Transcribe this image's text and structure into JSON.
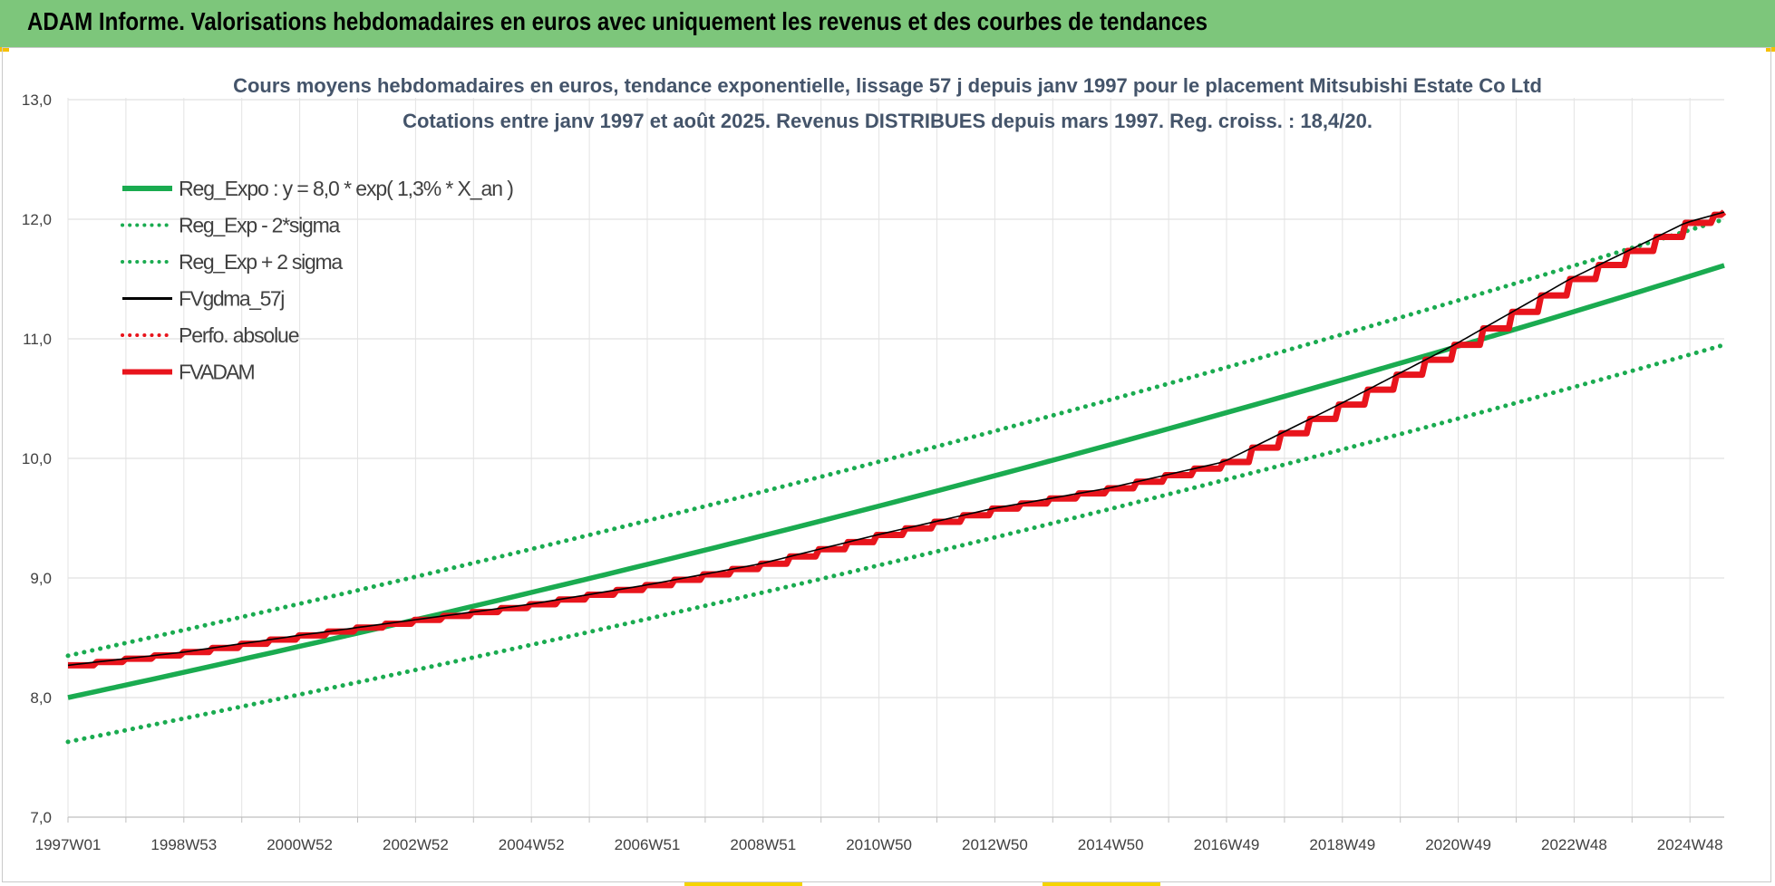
{
  "banner": {
    "title": "ADAM Informe. Valorisations hebdomadaires en euros avec uniquement les revenus et des courbes de tendances"
  },
  "colors": {
    "banner_bg": "#7dc67b",
    "trend_green": "#1aab50",
    "perf_red": "#e8141c",
    "fv_black": "#000000",
    "grid": "#d9d9d9",
    "axis_text": "#404040",
    "title_text": "#44546a"
  },
  "chart_data": {
    "type": "line",
    "title_line1": "Cours moyens hebdomadaires en euros, tendance exponentielle, lissage 57 j depuis janv 1997 pour le placement Mitsubishi Estate Co Ltd",
    "title_line2": "Cotations entre janv 1997 et août 2025. Revenus DISTRIBUES depuis mars 1997. Reg. croiss. : 18,4/20.",
    "xlabel": "",
    "ylabel": "",
    "x_range_years": [
      1997.0,
      2025.67
    ],
    "ylim": [
      7.0,
      13.0
    ],
    "y_ticks": [
      "7,0",
      "8,0",
      "9,0",
      "10,0",
      "11,0",
      "12,0",
      "13,0"
    ],
    "x_tick_labels": [
      "1997W01",
      "1998W53",
      "2000W52",
      "2002W52",
      "2004W52",
      "2006W51",
      "2008W51",
      "2010W50",
      "2012W50",
      "2014W50",
      "2016W49",
      "2018W49",
      "2020W49",
      "2022W48",
      "2024W48"
    ],
    "grid": true,
    "legend_position": "top-left",
    "regression": {
      "a": 8.0,
      "rate": 0.013
    },
    "series": [
      {
        "name": "Reg_Expo : y = 8,0 * exp( 1,3% *  X_an )",
        "style": "solid-thick",
        "color": "#1aab50",
        "points": [
          [
            1997.0,
            8.0
          ],
          [
            2025.67,
            11.45
          ]
        ]
      },
      {
        "name": "Reg_Exp - 2*sigma",
        "style": "dotted",
        "color": "#1aab50",
        "points": [
          [
            1997.0,
            7.63
          ],
          [
            2025.67,
            10.95
          ]
        ]
      },
      {
        "name": "Reg_Exp + 2 sigma",
        "style": "dotted",
        "color": "#1aab50",
        "points": [
          [
            1997.0,
            8.35
          ],
          [
            2025.67,
            12.0
          ]
        ]
      },
      {
        "name": "FVgdma_57j",
        "style": "solid-thin",
        "color": "#000000",
        "points": [
          [
            1997.0,
            8.27
          ],
          [
            1999.0,
            8.38
          ],
          [
            2001.0,
            8.52
          ],
          [
            2003.0,
            8.65
          ],
          [
            2005.0,
            8.78
          ],
          [
            2007.0,
            8.94
          ],
          [
            2009.0,
            9.12
          ],
          [
            2011.0,
            9.36
          ],
          [
            2013.0,
            9.58
          ],
          [
            2015.0,
            9.75
          ],
          [
            2017.0,
            9.97
          ],
          [
            2019.0,
            10.45
          ],
          [
            2021.0,
            10.95
          ],
          [
            2023.0,
            11.5
          ],
          [
            2025.0,
            11.97
          ],
          [
            2025.67,
            12.06
          ]
        ]
      },
      {
        "name": "Perfo. absolue",
        "style": "dotted",
        "color": "#e8141c",
        "points": []
      },
      {
        "name": "FVADAM",
        "style": "solid-thick-steps",
        "color": "#e8141c",
        "points": [
          [
            1997.0,
            8.27
          ],
          [
            1999.0,
            8.38
          ],
          [
            2001.0,
            8.52
          ],
          [
            2003.0,
            8.65
          ],
          [
            2005.0,
            8.78
          ],
          [
            2007.0,
            8.94
          ],
          [
            2009.0,
            9.12
          ],
          [
            2011.0,
            9.36
          ],
          [
            2013.0,
            9.58
          ],
          [
            2015.0,
            9.75
          ],
          [
            2017.0,
            9.97
          ],
          [
            2019.0,
            10.45
          ],
          [
            2021.0,
            10.95
          ],
          [
            2023.0,
            11.5
          ],
          [
            2025.0,
            11.97
          ],
          [
            2025.67,
            12.06
          ]
        ]
      }
    ]
  }
}
